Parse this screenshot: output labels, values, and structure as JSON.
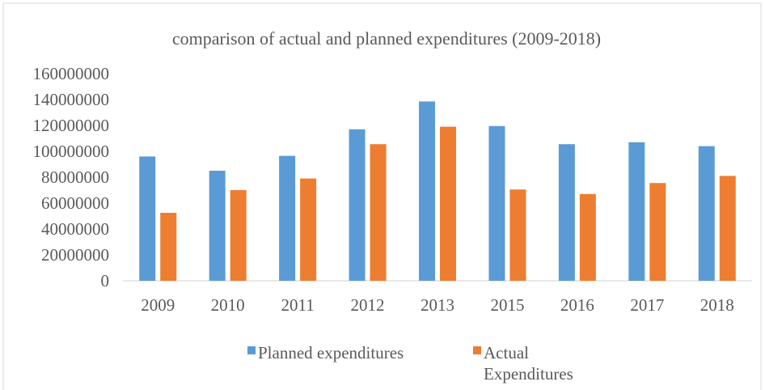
{
  "chart_data": {
    "type": "bar",
    "title": "comparison of actual and planned expenditures (2009-2018)",
    "categories": [
      "2009",
      "2010",
      "2011",
      "2012",
      "2013",
      "2015",
      "2016",
      "2017",
      "2018"
    ],
    "series": [
      {
        "name": "Planned expenditures",
        "color": "#5b9bd5",
        "values": [
          96000000,
          85000000,
          96500000,
          117000000,
          138500000,
          119500000,
          105500000,
          107000000,
          104000000
        ]
      },
      {
        "name": "Actual Expenditures",
        "legend_lines": [
          "Actual",
          "Expenditures"
        ],
        "color": "#ed7d31",
        "values": [
          52500000,
          70000000,
          79000000,
          105500000,
          119000000,
          70500000,
          67000000,
          75500000,
          81000000
        ]
      }
    ],
    "ylim": [
      0,
      160000000
    ],
    "yticks": [
      "0",
      "20000000",
      "40000000",
      "60000000",
      "80000000",
      "100000000",
      "120000000",
      "140000000",
      "160000000"
    ],
    "ytick_values": [
      0,
      20000000,
      40000000,
      60000000,
      80000000,
      100000000,
      120000000,
      140000000,
      160000000
    ],
    "grid": false,
    "legend_position": "bottom"
  }
}
